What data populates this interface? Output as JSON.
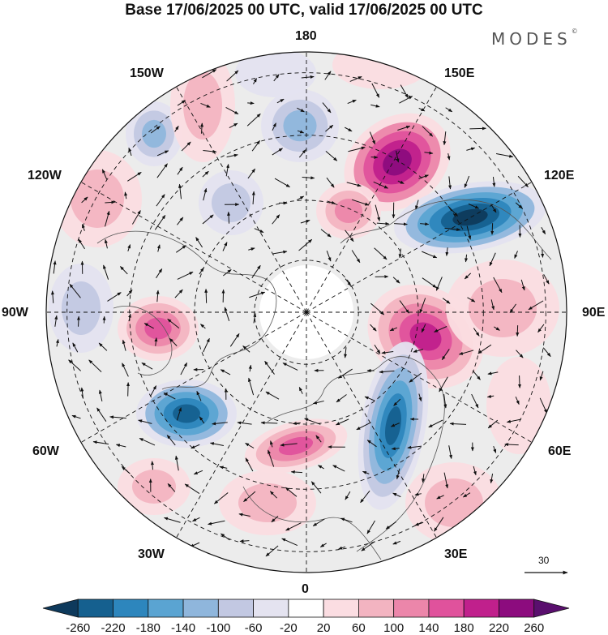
{
  "title": "Base 17/06/2025 00 UTC, valid 17/06/2025 00 UTC",
  "brand": "MODES",
  "brand_mark": "©",
  "longitude_labels": {
    "top": "180",
    "bottom": "0",
    "left": "90W",
    "right": "90E",
    "upper_left_1": "150W",
    "upper_left_2": "120W",
    "upper_right_1": "150E",
    "upper_right_2": "120E",
    "lower_left_1": "60W",
    "lower_left_2": "30W",
    "lower_right_1": "60E",
    "lower_right_2": "30E"
  },
  "vector_reference": "30",
  "colorbar": {
    "labels": [
      "-260",
      "-220",
      "-180",
      "-140",
      "-100",
      "-60",
      "-20",
      "20",
      "60",
      "100",
      "140",
      "180",
      "220",
      "260"
    ],
    "colors": [
      "#0e3a5c",
      "#15608f",
      "#2d86bd",
      "#5aa4d2",
      "#8fb6dc",
      "#c2c8e2",
      "#e4e3f0",
      "#ffffff",
      "#fbdde2",
      "#f3b4c1",
      "#ec86aa",
      "#e0529c",
      "#c0208c",
      "#8c0c7e",
      "#5a0f6e"
    ]
  },
  "map": {
    "projection": "north-polar-stereographic",
    "field": "anomaly shading with wind vectors"
  }
}
